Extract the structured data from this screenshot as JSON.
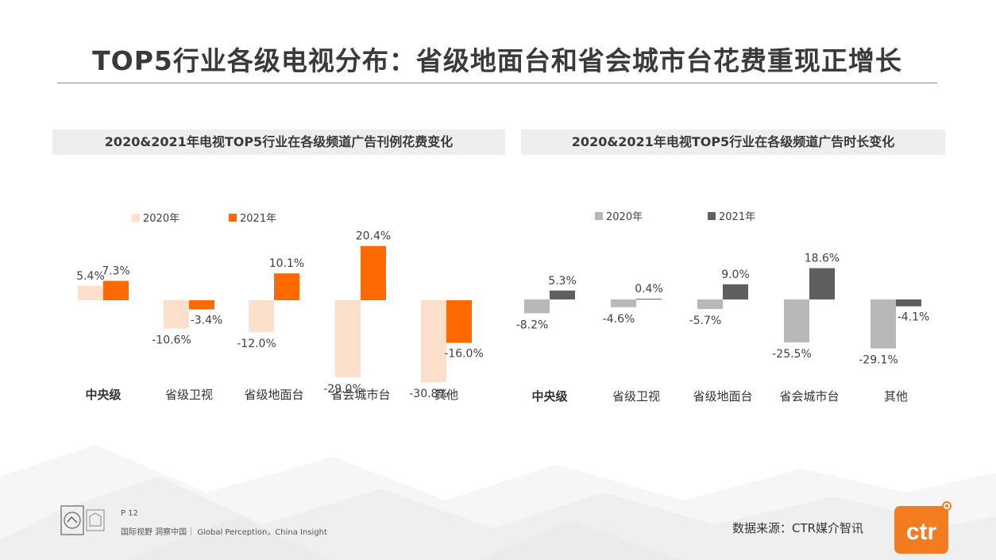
{
  "page": {
    "title": "TOP5行业各级电视分布：省级地面台和省会城市台花费重现正增长",
    "page_number": "P 12",
    "tagline": "国际视野  洞察中国｜ Global Perception，China Insight",
    "source": "数据来源：CTR媒介智讯",
    "logo_text": "ctr"
  },
  "colors": {
    "left_2020": "#fde0cc",
    "left_2021": "#ff6a00",
    "right_2020": "#b8b8b8",
    "right_2021": "#5f5f5f",
    "brand_orange": "#f47c20"
  },
  "chart_data": [
    {
      "type": "bar",
      "title": "2020&2021年电视TOP5行业在各级频道广告刊例花费变化",
      "categories": [
        "中央级",
        "省级卫视",
        "省级地面台",
        "省会城市台",
        "其他"
      ],
      "series": [
        {
          "name": "2020年",
          "values": [
            5.4,
            -10.6,
            -12.0,
            -29.0,
            -30.8
          ],
          "labels": [
            "5.4%",
            "-10.6%",
            "-12.0%",
            "-29.0%",
            "-30.8%"
          ]
        },
        {
          "name": "2021年",
          "values": [
            7.3,
            -3.4,
            10.1,
            20.4,
            -16.0
          ],
          "labels": [
            "7.3%",
            "-3.4%",
            "10.1%",
            "20.4%",
            "-16.0%"
          ]
        }
      ],
      "unit": "%",
      "legend": "top-left",
      "grid": false
    },
    {
      "type": "bar",
      "title": "2020&2021年电视TOP5行业在各级频道广告时长变化",
      "categories": [
        "中央级",
        "省级卫视",
        "省级地面台",
        "省会城市台",
        "其他"
      ],
      "series": [
        {
          "name": "2020年",
          "values": [
            -8.2,
            -4.6,
            -5.7,
            -25.5,
            -29.1
          ],
          "labels": [
            "-8.2%",
            "-4.6%",
            "-5.7%",
            "-25.5%",
            "-29.1%"
          ]
        },
        {
          "name": "2021年",
          "values": [
            5.3,
            0.4,
            9.0,
            18.6,
            -4.1
          ],
          "labels": [
            "5.3%",
            "0.4%",
            "9.0%",
            "18.6%",
            "-4.1%"
          ]
        }
      ],
      "unit": "%",
      "legend": "top-left",
      "grid": false
    }
  ]
}
